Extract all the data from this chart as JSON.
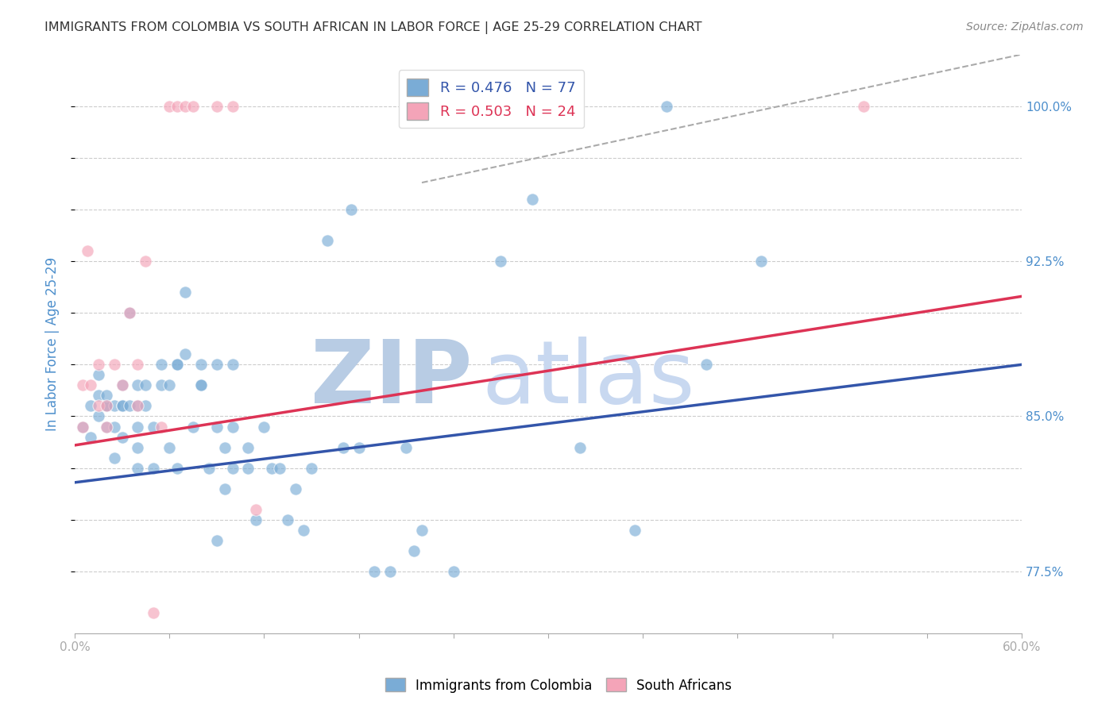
{
  "title": "IMMIGRANTS FROM COLOMBIA VS SOUTH AFRICAN IN LABOR FORCE | AGE 25-29 CORRELATION CHART",
  "source": "Source: ZipAtlas.com",
  "xlabel": "",
  "ylabel": "In Labor Force | Age 25-29",
  "xlim": [
    0.0,
    0.6
  ],
  "ylim": [
    0.745,
    1.025
  ],
  "ytick_positions": [
    0.775,
    0.8,
    0.825,
    0.85,
    0.875,
    0.9,
    0.925,
    0.95,
    0.975,
    1.0
  ],
  "ytick_labels_right": [
    "77.5%",
    "",
    "",
    "85.0%",
    "",
    "",
    "92.5%",
    "",
    "",
    "100.0%"
  ],
  "xticks": [
    0.0,
    0.06,
    0.12,
    0.18,
    0.24,
    0.3,
    0.36,
    0.42,
    0.48,
    0.54,
    0.6
  ],
  "xtick_labels": [
    "0.0%",
    "",
    "",
    "",
    "",
    "",
    "",
    "",
    "",
    "",
    "60.0%"
  ],
  "colombia_color": "#7aacd6",
  "sa_color": "#f4a4b8",
  "colombia_R": 0.476,
  "colombia_N": 77,
  "sa_R": 0.503,
  "sa_N": 24,
  "colombia_scatter_x": [
    0.005,
    0.01,
    0.01,
    0.015,
    0.015,
    0.015,
    0.02,
    0.02,
    0.02,
    0.02,
    0.025,
    0.025,
    0.025,
    0.03,
    0.03,
    0.03,
    0.03,
    0.035,
    0.035,
    0.04,
    0.04,
    0.04,
    0.04,
    0.04,
    0.045,
    0.045,
    0.05,
    0.05,
    0.055,
    0.055,
    0.06,
    0.06,
    0.065,
    0.065,
    0.065,
    0.07,
    0.07,
    0.075,
    0.08,
    0.08,
    0.08,
    0.085,
    0.09,
    0.09,
    0.09,
    0.095,
    0.095,
    0.1,
    0.1,
    0.1,
    0.11,
    0.11,
    0.115,
    0.12,
    0.125,
    0.13,
    0.135,
    0.14,
    0.145,
    0.15,
    0.16,
    0.17,
    0.175,
    0.18,
    0.19,
    0.2,
    0.21,
    0.215,
    0.22,
    0.24,
    0.27,
    0.29,
    0.32,
    0.355,
    0.375,
    0.4,
    0.435
  ],
  "colombia_scatter_y": [
    0.845,
    0.84,
    0.855,
    0.86,
    0.87,
    0.85,
    0.845,
    0.855,
    0.855,
    0.86,
    0.845,
    0.855,
    0.83,
    0.855,
    0.855,
    0.84,
    0.865,
    0.9,
    0.855,
    0.855,
    0.845,
    0.835,
    0.865,
    0.825,
    0.865,
    0.855,
    0.845,
    0.825,
    0.875,
    0.865,
    0.835,
    0.865,
    0.875,
    0.875,
    0.825,
    0.91,
    0.88,
    0.845,
    0.865,
    0.865,
    0.875,
    0.825,
    0.79,
    0.875,
    0.845,
    0.835,
    0.815,
    0.875,
    0.845,
    0.825,
    0.835,
    0.825,
    0.8,
    0.845,
    0.825,
    0.825,
    0.8,
    0.815,
    0.795,
    0.825,
    0.935,
    0.835,
    0.95,
    0.835,
    0.775,
    0.775,
    0.835,
    0.785,
    0.795,
    0.775,
    0.925,
    0.955,
    0.835,
    0.795,
    1.0,
    0.875,
    0.925
  ],
  "sa_scatter_x": [
    0.005,
    0.005,
    0.008,
    0.01,
    0.015,
    0.015,
    0.02,
    0.02,
    0.025,
    0.03,
    0.035,
    0.04,
    0.04,
    0.045,
    0.05,
    0.055,
    0.06,
    0.065,
    0.07,
    0.075,
    0.09,
    0.1,
    0.115,
    0.5
  ],
  "sa_scatter_y": [
    0.845,
    0.865,
    0.93,
    0.865,
    0.875,
    0.855,
    0.845,
    0.855,
    0.875,
    0.865,
    0.9,
    0.855,
    0.875,
    0.925,
    0.755,
    0.845,
    1.0,
    1.0,
    1.0,
    1.0,
    1.0,
    1.0,
    0.805,
    1.0
  ],
  "colombia_line_x": [
    0.0,
    0.6
  ],
  "colombia_line_y": [
    0.818,
    0.875
  ],
  "sa_line_x": [
    0.0,
    0.6
  ],
  "sa_line_y": [
    0.836,
    0.908
  ],
  "diag_line_x": [
    0.22,
    0.6
  ],
  "diag_line_y": [
    0.963,
    1.025
  ],
  "colombia_line_color": "#3355aa",
  "sa_line_color": "#dd3355",
  "trend_line_color": "#aaaaaa",
  "background_color": "#ffffff",
  "grid_color": "#cccccc",
  "tick_color": "#4d8fcc",
  "title_color": "#333333",
  "watermark_z_color": "#b8cce4",
  "watermark_ip_color": "#b8cce4",
  "watermark_atlas_color": "#c8d8f0",
  "watermark_text_zip": "ZIP",
  "watermark_text_atlas": "atlas"
}
